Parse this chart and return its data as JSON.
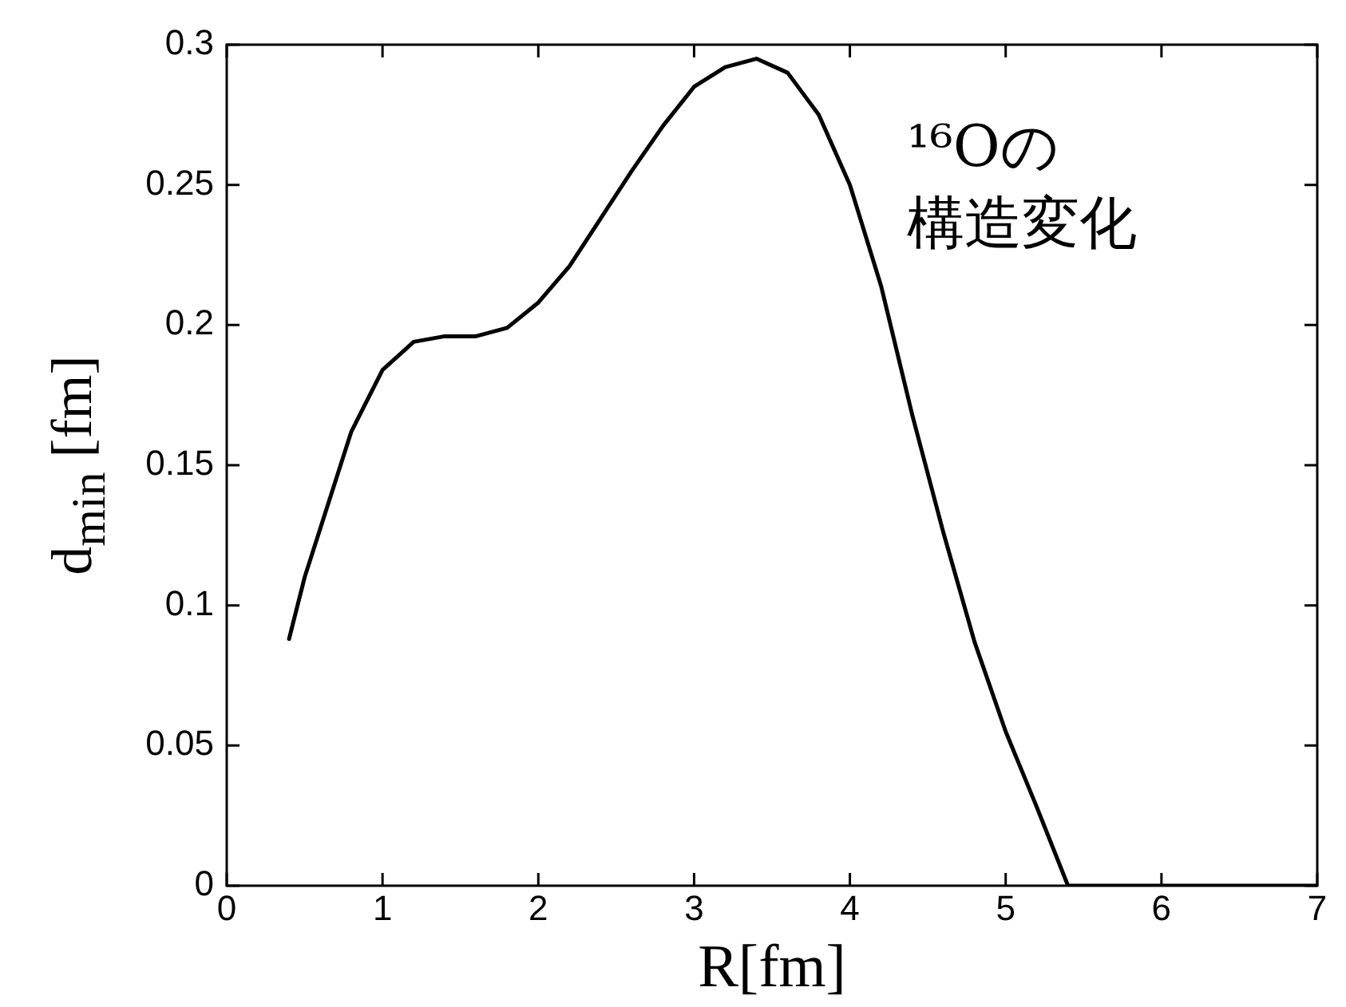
{
  "chart_data": {
    "type": "line",
    "xlabel": "R[fm]",
    "ylabel": "d$_{min}$ [fm]",
    "annotations": [
      "¹⁶Oの",
      "構造変化"
    ],
    "xlim": [
      0,
      7
    ],
    "xticks": [
      0,
      1,
      2,
      3,
      4,
      5,
      6,
      7
    ],
    "ylim": [
      0,
      0.3
    ],
    "yticks": [
      0,
      0.05,
      0.1,
      0.15,
      0.2,
      0.25,
      0.3
    ],
    "marker": "none",
    "line_style": "solid",
    "legend": false,
    "grid": false,
    "series": [
      {
        "color": "#000000",
        "x": [
          0.4,
          0.5,
          0.8,
          1.0,
          1.2,
          1.4,
          1.6,
          1.8,
          2.0,
          2.2,
          2.4,
          2.6,
          2.8,
          3.0,
          3.2,
          3.4,
          3.6,
          3.8,
          4.0,
          4.2,
          4.4,
          4.6,
          4.8,
          5.0,
          5.2,
          5.4,
          7.0
        ],
        "values": [
          0.088,
          0.11,
          0.162,
          0.184,
          0.194,
          0.196,
          0.196,
          0.199,
          0.208,
          0.221,
          0.238,
          0.255,
          0.271,
          0.285,
          0.292,
          0.295,
          0.29,
          0.275,
          0.25,
          0.214,
          0.168,
          0.126,
          0.087,
          0.055,
          0.028,
          0,
          0
        ]
      }
    ]
  }
}
